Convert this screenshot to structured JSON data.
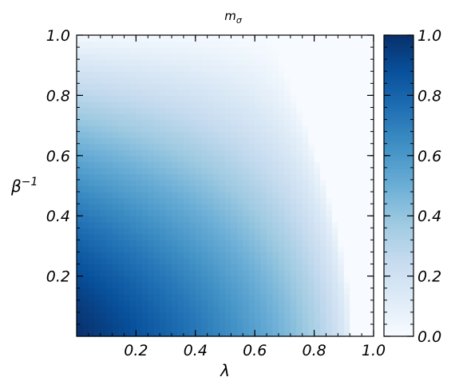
{
  "chart_data": {
    "type": "heatmap",
    "title": "m_σ",
    "title_main": "m",
    "title_sub": "σ",
    "xlabel": "λ",
    "ylabel_base": "β",
    "ylabel_sup": "−1",
    "xlim": [
      0.0,
      1.0
    ],
    "ylim": [
      0.0,
      1.0
    ],
    "x_ticks": [
      {
        "value": 0.2,
        "label": "0.2"
      },
      {
        "value": 0.4,
        "label": "0.4"
      },
      {
        "value": 0.6,
        "label": "0.6"
      },
      {
        "value": 0.8,
        "label": "0.8"
      },
      {
        "value": 1.0,
        "label": "1.0"
      }
    ],
    "y_ticks": [
      {
        "value": 0.2,
        "label": "0.2"
      },
      {
        "value": 0.4,
        "label": "0.4"
      },
      {
        "value": 0.6,
        "label": "0.6"
      },
      {
        "value": 0.8,
        "label": "0.8"
      },
      {
        "value": 1.0,
        "label": "1.0"
      }
    ],
    "colorbar": {
      "range": [
        0.0,
        1.0
      ],
      "ticks": [
        {
          "value": 0.0,
          "label": "0.0"
        },
        {
          "value": 0.2,
          "label": "0.2"
        },
        {
          "value": 0.4,
          "label": "0.4"
        },
        {
          "value": 0.6,
          "label": "0.6"
        },
        {
          "value": 0.8,
          "label": "0.8"
        },
        {
          "value": 1.0,
          "label": "1.0"
        }
      ]
    },
    "colormap": "Blues",
    "colormap_stops": [
      "#f7fbff",
      "#deebf7",
      "#c6dbef",
      "#9ecae1",
      "#6baed6",
      "#4292c6",
      "#2171b5",
      "#08519c",
      "#08306b"
    ],
    "grid": false,
    "grid_size": 50,
    "field_samples": [
      {
        "lambda": 0.02,
        "beta_inv": 0.02,
        "m_sigma": 0.98
      },
      {
        "lambda": 0.2,
        "beta_inv": 0.1,
        "m_sigma": 0.85
      },
      {
        "lambda": 0.4,
        "beta_inv": 0.1,
        "m_sigma": 0.7
      },
      {
        "lambda": 0.55,
        "beta_inv": 0.1,
        "m_sigma": 0.45
      },
      {
        "lambda": 0.02,
        "beta_inv": 0.6,
        "m_sigma": 0.6
      },
      {
        "lambda": 0.02,
        "beta_inv": 0.8,
        "m_sigma": 0.3
      },
      {
        "lambda": 0.02,
        "beta_inv": 1.0,
        "m_sigma": 0.05
      },
      {
        "lambda": 0.9,
        "beta_inv": 0.2,
        "m_sigma": 0.0
      },
      {
        "lambda": 0.9,
        "beta_inv": 0.8,
        "m_sigma": 0.1
      }
    ]
  }
}
